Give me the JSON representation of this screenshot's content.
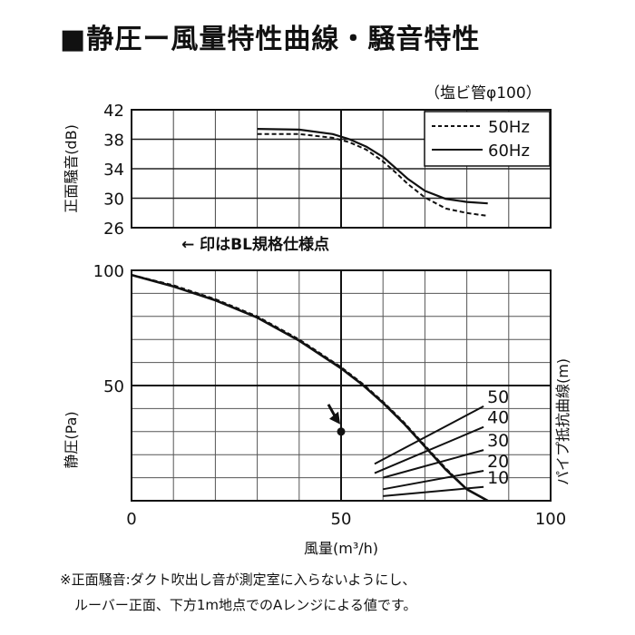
{
  "title": "■静圧ー風量特性曲線・騒音特性",
  "pipe_label": "（塩ビ管φ100）",
  "bl_note": "← 印はBL規格仕様点",
  "footnote": {
    "line1": "※正面騒音:ダクト吹出し音が測定室に入らないようにし、",
    "line2": "ルーバー正面、下方1m地点でのAレンジによる値です。"
  },
  "chart_data": [
    {
      "type": "line",
      "name": "noise",
      "ylabel": "正面騒音(dB)",
      "ylim": [
        26,
        42
      ],
      "yticks": [
        42,
        38,
        34,
        30,
        26
      ],
      "xlim": [
        0,
        100
      ],
      "grid": true,
      "legend": "top-right",
      "series": [
        {
          "name": "50Hz",
          "style": "dashed",
          "x": [
            30,
            40,
            48,
            52,
            56,
            60,
            63,
            66,
            70,
            75,
            80,
            85
          ],
          "y": [
            38.7,
            38.7,
            38.2,
            37.6,
            36.6,
            35.0,
            33.5,
            31.9,
            30.1,
            28.6,
            28.0,
            27.6
          ]
        },
        {
          "name": "60Hz",
          "style": "solid",
          "x": [
            30,
            40,
            48,
            52,
            56,
            60,
            63,
            66,
            70,
            75,
            80,
            85
          ],
          "y": [
            39.4,
            39.3,
            38.7,
            38.0,
            37.0,
            35.6,
            34.1,
            32.6,
            31.0,
            29.9,
            29.5,
            29.3
          ]
        }
      ]
    },
    {
      "type": "line",
      "name": "pressure",
      "xlabel": "風量(m³/h)",
      "ylabel": "静圧(Pa)",
      "y2label": "パイプ抵抗曲線(m)",
      "xlim": [
        0,
        100
      ],
      "ylim": [
        0,
        100
      ],
      "xticks": [
        0,
        50,
        100
      ],
      "yticks": [
        100,
        50
      ],
      "grid": true,
      "series": [
        {
          "name": "50Hz",
          "style": "dashed",
          "x": [
            0,
            10,
            20,
            30,
            40,
            50,
            55,
            60,
            65,
            70,
            75,
            80,
            85
          ],
          "y": [
            98,
            93.5,
            87.5,
            80,
            70,
            58,
            51,
            43,
            34,
            24,
            14,
            5,
            0
          ]
        },
        {
          "name": "60Hz",
          "style": "solid",
          "x": [
            0,
            10,
            20,
            30,
            40,
            50,
            55,
            60,
            65,
            70,
            75,
            80,
            85
          ],
          "y": [
            98,
            93,
            87,
            79.5,
            69.5,
            57.5,
            50.5,
            42.5,
            33.5,
            23.5,
            13.5,
            5,
            0
          ]
        }
      ],
      "pipe_curves": [
        {
          "label": "50",
          "x": [
            58,
            84
          ],
          "y": [
            16,
            41
          ]
        },
        {
          "label": "40",
          "x": [
            58,
            84
          ],
          "y": [
            12,
            32
          ]
        },
        {
          "label": "30",
          "x": [
            60,
            84
          ],
          "y": [
            10,
            22
          ]
        },
        {
          "label": "20",
          "x": [
            60,
            84
          ],
          "y": [
            5,
            13
          ]
        },
        {
          "label": "10",
          "x": [
            60,
            84
          ],
          "y": [
            2,
            6
          ]
        }
      ],
      "bl_point": {
        "x": 50,
        "y": 30
      }
    }
  ]
}
